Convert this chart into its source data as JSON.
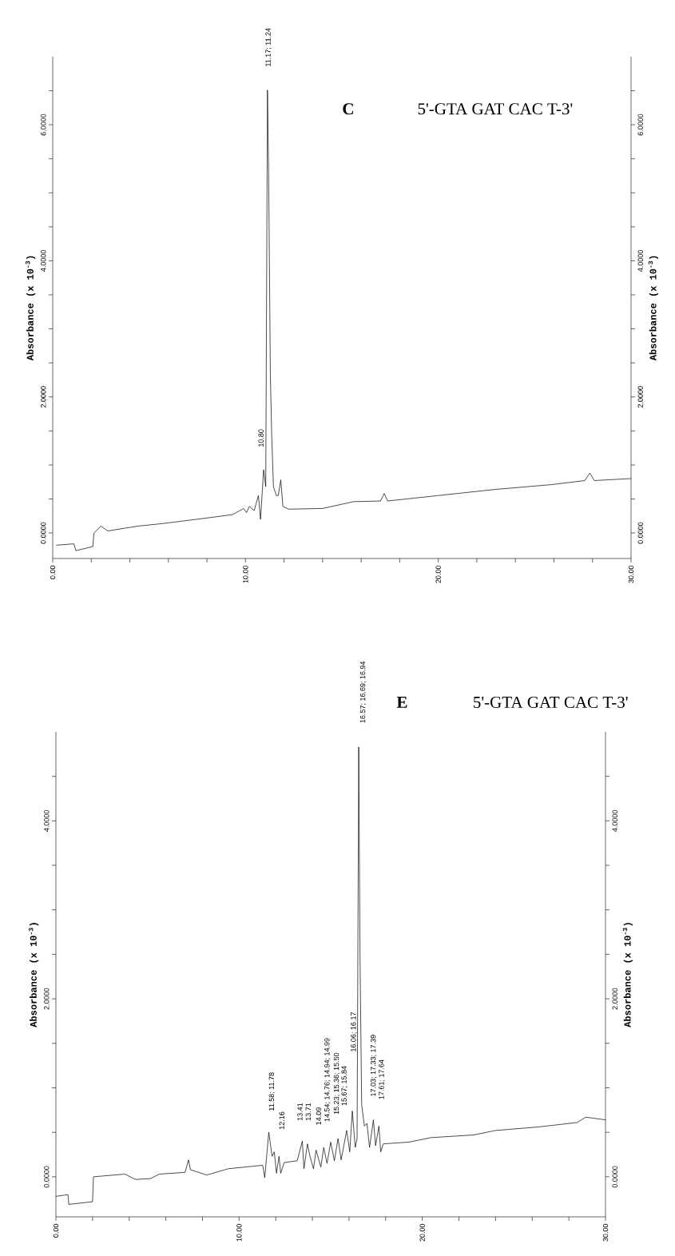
{
  "chart_data": [
    {
      "type": "line",
      "title": "C",
      "subtitle": "5'-GTA GAT CAC T-3'",
      "ylabel": "Absorbance (x 10$^{-3}$)",
      "y2label": "Absorbance (x 10$^{-3}$)",
      "xlim": [
        0,
        30
      ],
      "ylim": [
        -0.375,
        7.0
      ],
      "y2lim": [
        -0.375,
        7.0
      ],
      "xticks": [
        {
          "value": 0,
          "label": "0.00"
        },
        {
          "value": 2,
          "label": null
        },
        {
          "value": 4,
          "label": null
        },
        {
          "value": 6,
          "label": null
        },
        {
          "value": 8,
          "label": null
        },
        {
          "value": 10,
          "label": "10.00"
        },
        {
          "value": 12,
          "label": null
        },
        {
          "value": 14,
          "label": null
        },
        {
          "value": 16,
          "label": null
        },
        {
          "value": 18,
          "label": null
        },
        {
          "value": 20,
          "label": "20.00"
        },
        {
          "value": 22,
          "label": null
        },
        {
          "value": 24,
          "label": null
        },
        {
          "value": 26,
          "label": null
        },
        {
          "value": 28,
          "label": null
        },
        {
          "value": 30,
          "label": "30.00"
        }
      ],
      "yticks": [
        {
          "value": 0,
          "label": "0.0000"
        },
        {
          "value": 0.5,
          "label": null
        },
        {
          "value": 1,
          "label": null
        },
        {
          "value": 1.5,
          "label": null
        },
        {
          "value": 2,
          "label": "2.0000"
        },
        {
          "value": 2.5,
          "label": null
        },
        {
          "value": 3,
          "label": null
        },
        {
          "value": 3.5,
          "label": null
        },
        {
          "value": 4,
          "label": "4.0000"
        },
        {
          "value": 4.5,
          "label": null
        },
        {
          "value": 5,
          "label": null
        },
        {
          "value": 5.5,
          "label": null
        },
        {
          "value": 6,
          "label": "6.0000"
        },
        {
          "value": 6.5,
          "label": null
        }
      ],
      "y2ticks": [
        {
          "value": 0,
          "label": "0.0000"
        },
        {
          "value": 0.5,
          "label": null
        },
        {
          "value": 1,
          "label": null
        },
        {
          "value": 1.5,
          "label": null
        },
        {
          "value": 2,
          "label": "2.0000"
        },
        {
          "value": 2.5,
          "label": null
        },
        {
          "value": 3,
          "label": null
        },
        {
          "value": 3.5,
          "label": null
        },
        {
          "value": 4,
          "label": "4.0000"
        },
        {
          "value": 4.5,
          "label": null
        },
        {
          "value": 5,
          "label": null
        },
        {
          "value": 5.5,
          "label": null
        },
        {
          "value": 6,
          "label": "6.0000"
        },
        {
          "value": 6.5,
          "label": null
        }
      ],
      "series": [
        {
          "color": "#000000",
          "x": [
            0.18,
            1.1,
            1.2,
            2.08,
            2.14,
            2.5,
            2.86,
            4.4,
            5.76,
            8.0,
            9.33,
            9.9,
            10.05,
            10.2,
            10.45,
            10.67,
            10.78,
            10.94,
            11.05,
            11.14,
            11.2,
            11.29,
            11.36,
            11.45,
            11.6,
            11.7,
            11.83,
            11.94,
            12.23,
            14.0,
            15.6,
            17.0,
            17.2,
            17.37,
            20.0,
            22.95,
            25.85,
            27.6,
            27.86,
            28.1,
            30.0
          ],
          "values": [
            -0.18,
            -0.16,
            -0.26,
            -0.2,
            0.0,
            0.1,
            0.03,
            0.1,
            0.14,
            0.22,
            0.27,
            0.36,
            0.3,
            0.39,
            0.33,
            0.55,
            0.2,
            0.93,
            0.68,
            6.51,
            5.29,
            2.32,
            1.43,
            0.68,
            0.55,
            0.55,
            0.78,
            0.39,
            0.35,
            0.36,
            0.46,
            0.47,
            0.58,
            0.47,
            0.55,
            0.64,
            0.71,
            0.77,
            0.88,
            0.77,
            0.8
          ]
        }
      ],
      "annotations": [
        "11.17; 11.24",
        "10.80"
      ]
    },
    {
      "type": "line",
      "title": "E",
      "subtitle": "5'-GTA GAT CAC T-3'",
      "ylabel": "Absorbance (x 10$^{-3}$)",
      "y2label": "Absorbance (x 10$^{-3}$)",
      "xlim": [
        0,
        30
      ],
      "ylim": [
        -0.45,
        5.0
      ],
      "y2lim": [
        -0.45,
        5.0
      ],
      "xticks": [
        {
          "value": 0,
          "label": "0.00"
        },
        {
          "value": 2,
          "label": null
        },
        {
          "value": 4,
          "label": null
        },
        {
          "value": 6,
          "label": null
        },
        {
          "value": 8,
          "label": null
        },
        {
          "value": 10,
          "label": "10.00"
        },
        {
          "value": 12,
          "label": null
        },
        {
          "value": 14,
          "label": null
        },
        {
          "value": 16,
          "label": null
        },
        {
          "value": 18,
          "label": null
        },
        {
          "value": 20,
          "label": "20.00"
        },
        {
          "value": 22,
          "label": null
        },
        {
          "value": 24,
          "label": null
        },
        {
          "value": 26,
          "label": null
        },
        {
          "value": 28,
          "label": null
        },
        {
          "value": 30,
          "label": "30.00"
        }
      ],
      "yticks": [
        {
          "value": 0,
          "label": "0.0000"
        },
        {
          "value": 0.5,
          "label": null
        },
        {
          "value": 1,
          "label": null
        },
        {
          "value": 1.5,
          "label": null
        },
        {
          "value": 2,
          "label": "2.0000"
        },
        {
          "value": 2.5,
          "label": null
        },
        {
          "value": 3,
          "label": null
        },
        {
          "value": 3.5,
          "label": null
        },
        {
          "value": 4,
          "label": "4.0000"
        },
        {
          "value": 4.5,
          "label": null
        }
      ],
      "y2ticks": [
        {
          "value": 0,
          "label": "0.0000"
        },
        {
          "value": 0.5,
          "label": null
        },
        {
          "value": 1,
          "label": null
        },
        {
          "value": 1.5,
          "label": null
        },
        {
          "value": 2,
          "label": "2.0000"
        },
        {
          "value": 2.5,
          "label": null
        },
        {
          "value": 3,
          "label": null
        },
        {
          "value": 3.5,
          "label": null
        },
        {
          "value": 4,
          "label": "4.0000"
        },
        {
          "value": 4.5,
          "label": null
        }
      ],
      "series": [
        {
          "color": "#000000",
          "x": [
            0.0,
            0.66,
            0.7,
            2.0,
            2.05,
            3.76,
            4.35,
            5.17,
            5.64,
            7.05,
            7.24,
            7.34,
            8.23,
            9.4,
            11.29,
            11.4,
            11.62,
            11.8,
            11.92,
            12.04,
            12.18,
            12.27,
            12.46,
            13.17,
            13.45,
            13.54,
            13.73,
            13.87,
            14.06,
            14.2,
            14.46,
            14.62,
            14.8,
            15.0,
            15.2,
            15.4,
            15.57,
            15.87,
            16.04,
            16.18,
            16.34,
            16.44,
            16.53,
            16.6,
            16.69,
            16.84,
            16.98,
            17.12,
            17.33,
            17.45,
            17.63,
            17.73,
            17.87,
            19.28,
            20.46,
            22.8,
            23.98,
            26.33,
            28.45,
            28.92,
            30.0
          ],
          "values": [
            -0.22,
            -0.2,
            -0.31,
            -0.28,
            0.0,
            0.03,
            -0.03,
            -0.02,
            0.03,
            0.05,
            0.19,
            0.08,
            0.02,
            0.09,
            0.13,
            -0.01,
            0.5,
            0.23,
            0.28,
            0.04,
            0.23,
            0.04,
            0.16,
            0.18,
            0.4,
            0.09,
            0.37,
            0.23,
            0.09,
            0.3,
            0.11,
            0.33,
            0.15,
            0.39,
            0.18,
            0.43,
            0.19,
            0.52,
            0.28,
            0.74,
            0.33,
            0.43,
            4.83,
            2.46,
            0.81,
            0.57,
            0.6,
            0.33,
            0.64,
            0.35,
            0.57,
            0.28,
            0.37,
            0.39,
            0.44,
            0.47,
            0.52,
            0.56,
            0.61,
            0.67,
            0.64
          ]
        }
      ],
      "annotations": [
        "11.58; 11.78",
        "12.16",
        "13.41",
        "13.71",
        "14.09",
        "14.54; 14.76; 14.94; 14.99",
        "15.23; 15.36; 15.50",
        "15.67; 15.84",
        "16.06; 16.17",
        "16.57; 16.69; 16.94",
        "17.03; 17.33; 17.39",
        "17.61; 17.64"
      ]
    }
  ]
}
